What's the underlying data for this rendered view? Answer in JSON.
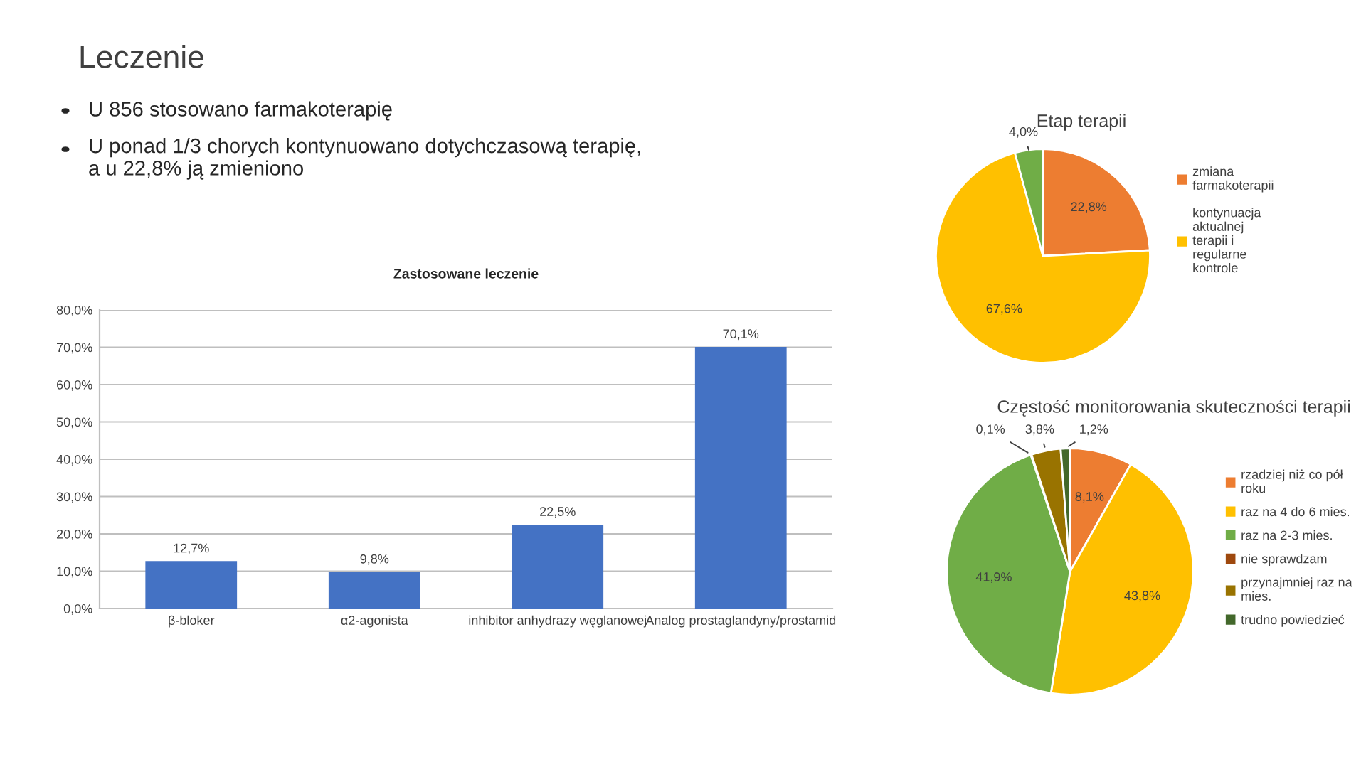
{
  "chart_data": [
    {
      "type": "other",
      "title": "Leczenie",
      "annotations": [
        "U 856 stosowano farmakoterapię",
        "U ponad 1/3 chorych kontynuowano dotychczasową terapię,\na u 22,8% ją zmieniono"
      ]
    },
    {
      "type": "bar",
      "title": "Zastosowane leczenie",
      "categories": [
        "β-bloker",
        "α2-agonista",
        "inhibitor anhydrazy węglanowej",
        "Analog prostaglandyny/prostamid"
      ],
      "values": [
        12.7,
        9.8,
        22.5,
        70.1
      ],
      "color": "#4472c4",
      "value_labels": [
        "12,7%",
        "9,8%",
        "22,5%",
        "70,1%"
      ],
      "ylim": [
        0,
        80
      ],
      "yticks": [
        {
          "value": 0,
          "label": "0,0%"
        },
        {
          "value": 10,
          "label": "10,0%"
        },
        {
          "value": 20,
          "label": "20,0%"
        },
        {
          "value": 30,
          "label": "30,0%"
        },
        {
          "value": 40,
          "label": "40,0%"
        },
        {
          "value": 50,
          "label": "50,0%"
        },
        {
          "value": 60,
          "label": "60,0%"
        },
        {
          "value": 70,
          "label": "70,0%"
        },
        {
          "value": 80,
          "label": "80,0%"
        }
      ],
      "grid": "y",
      "legend": false
    },
    {
      "type": "pie",
      "title": "Etap terapii",
      "categories": [
        "zmiana farmakoterapii",
        "kontynuacja aktualnej terapii i regularne kontrole",
        null
      ],
      "values": [
        22.8,
        67.6,
        4.0
      ],
      "colors": [
        "#ed7d31",
        "#ffc000",
        "#70ad47"
      ],
      "value_labels": [
        "22,8%",
        "67,6%",
        "4,0%"
      ],
      "legend": "right"
    },
    {
      "type": "pie",
      "title": "Częstość monitorowania skuteczności terapii",
      "categories": [
        "rzadziej niż co pół roku",
        "raz na 4 do 6 mies.",
        "raz na 2-3 mies.",
        "nie sprawdzam",
        "przynajmniej raz na mies.",
        "trudno powiedzieć"
      ],
      "values": [
        8.1,
        43.8,
        41.9,
        0.1,
        3.8,
        1.2
      ],
      "colors": [
        "#ed7d31",
        "#ffc000",
        "#70ad47",
        "#9e480e",
        "#997300",
        "#43682b"
      ],
      "value_labels": [
        "8,1%",
        "43,8%",
        "41,9%",
        "0,1%",
        "3,8%",
        "1,2%"
      ],
      "legend": "right"
    }
  ]
}
